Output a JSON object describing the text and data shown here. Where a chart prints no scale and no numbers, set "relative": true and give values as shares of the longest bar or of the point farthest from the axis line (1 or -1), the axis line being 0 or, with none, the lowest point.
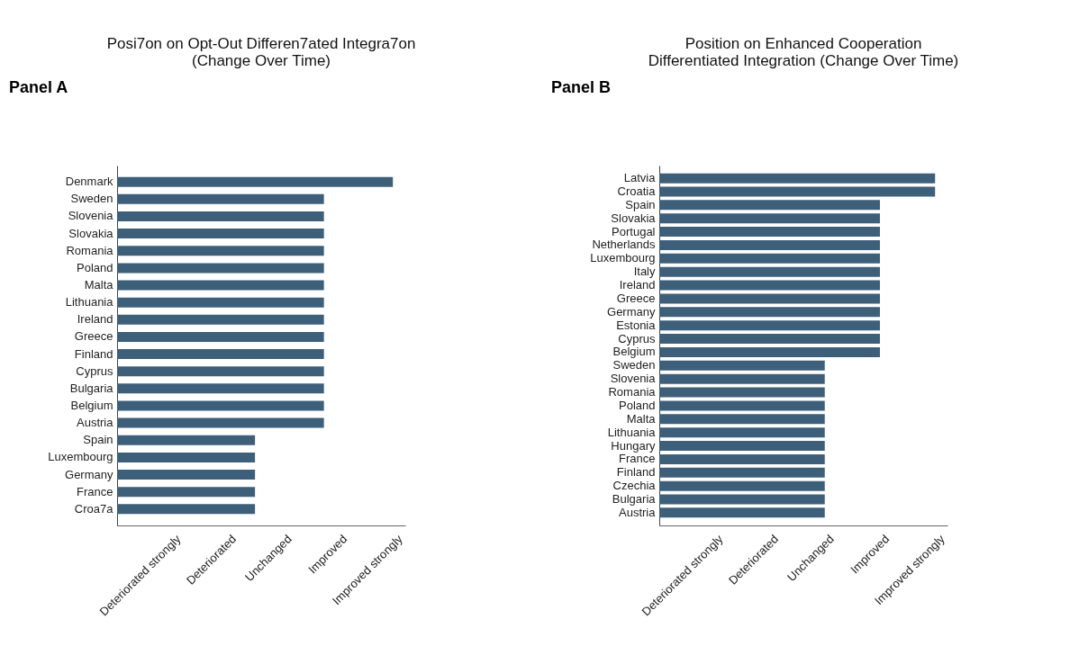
{
  "chart_data": [
    {
      "type": "bar",
      "orientation": "horizontal",
      "relative": true,
      "title": "Posi7on on Opt-Out Differen7ated Integra7on (Change Over Time)",
      "annotations": [
        "Panel A",
        "Deteriorated strongly",
        "Deteriorated",
        "Unchanged",
        "Improved",
        "Improved strongly"
      ],
      "categories": [
        "Denmark",
        "Sweden",
        "Slovenia",
        "Slovakia",
        "Romania",
        "Poland",
        "Malta",
        "Lithuania",
        "Ireland",
        "Greece",
        "Finland",
        "Cyprus",
        "Bulgaria",
        "Belgium",
        "Austria",
        "Spain",
        "Luxembourg",
        "Germany",
        "France",
        "Croa7a"
      ],
      "values": [
        1,
        0.75,
        0.75,
        0.75,
        0.75,
        0.75,
        0.75,
        0.75,
        0.75,
        0.75,
        0.75,
        0.75,
        0.75,
        0.75,
        0.75,
        0.5,
        0.5,
        0.5,
        0.5,
        0.5
      ],
      "color": "#3d5f7a"
    },
    {
      "type": "bar",
      "orientation": "horizontal",
      "relative": true,
      "title": "Position on Enhanced Cooperation Differentiated Integration (Change Over Time)",
      "annotations": [
        "Panel B",
        "Deteriorated strongly",
        "Deteriorated",
        "Unchanged",
        "Improved",
        "Improved strongly"
      ],
      "categories": [
        "Latvia",
        "Croatia",
        "Spain",
        "Slovakia",
        "Portugal",
        "Netherlands",
        "Luxembourg",
        "Italy",
        "Ireland",
        "Greece",
        "Germany",
        "Estonia",
        "Cyprus",
        "Belgium",
        "Sweden",
        "Slovenia",
        "Romania",
        "Poland",
        "Malta",
        "Lithuania",
        "Hungary",
        "France",
        "Finland",
        "Czechia",
        "Bulgaria",
        "Austria"
      ],
      "values": [
        1,
        1,
        0.8,
        0.8,
        0.8,
        0.8,
        0.8,
        0.8,
        0.8,
        0.8,
        0.8,
        0.8,
        0.8,
        0.8,
        0.6,
        0.6,
        0.6,
        0.6,
        0.6,
        0.6,
        0.6,
        0.6,
        0.6,
        0.6,
        0.6,
        0.6
      ],
      "color": "#3d5f7a"
    }
  ]
}
